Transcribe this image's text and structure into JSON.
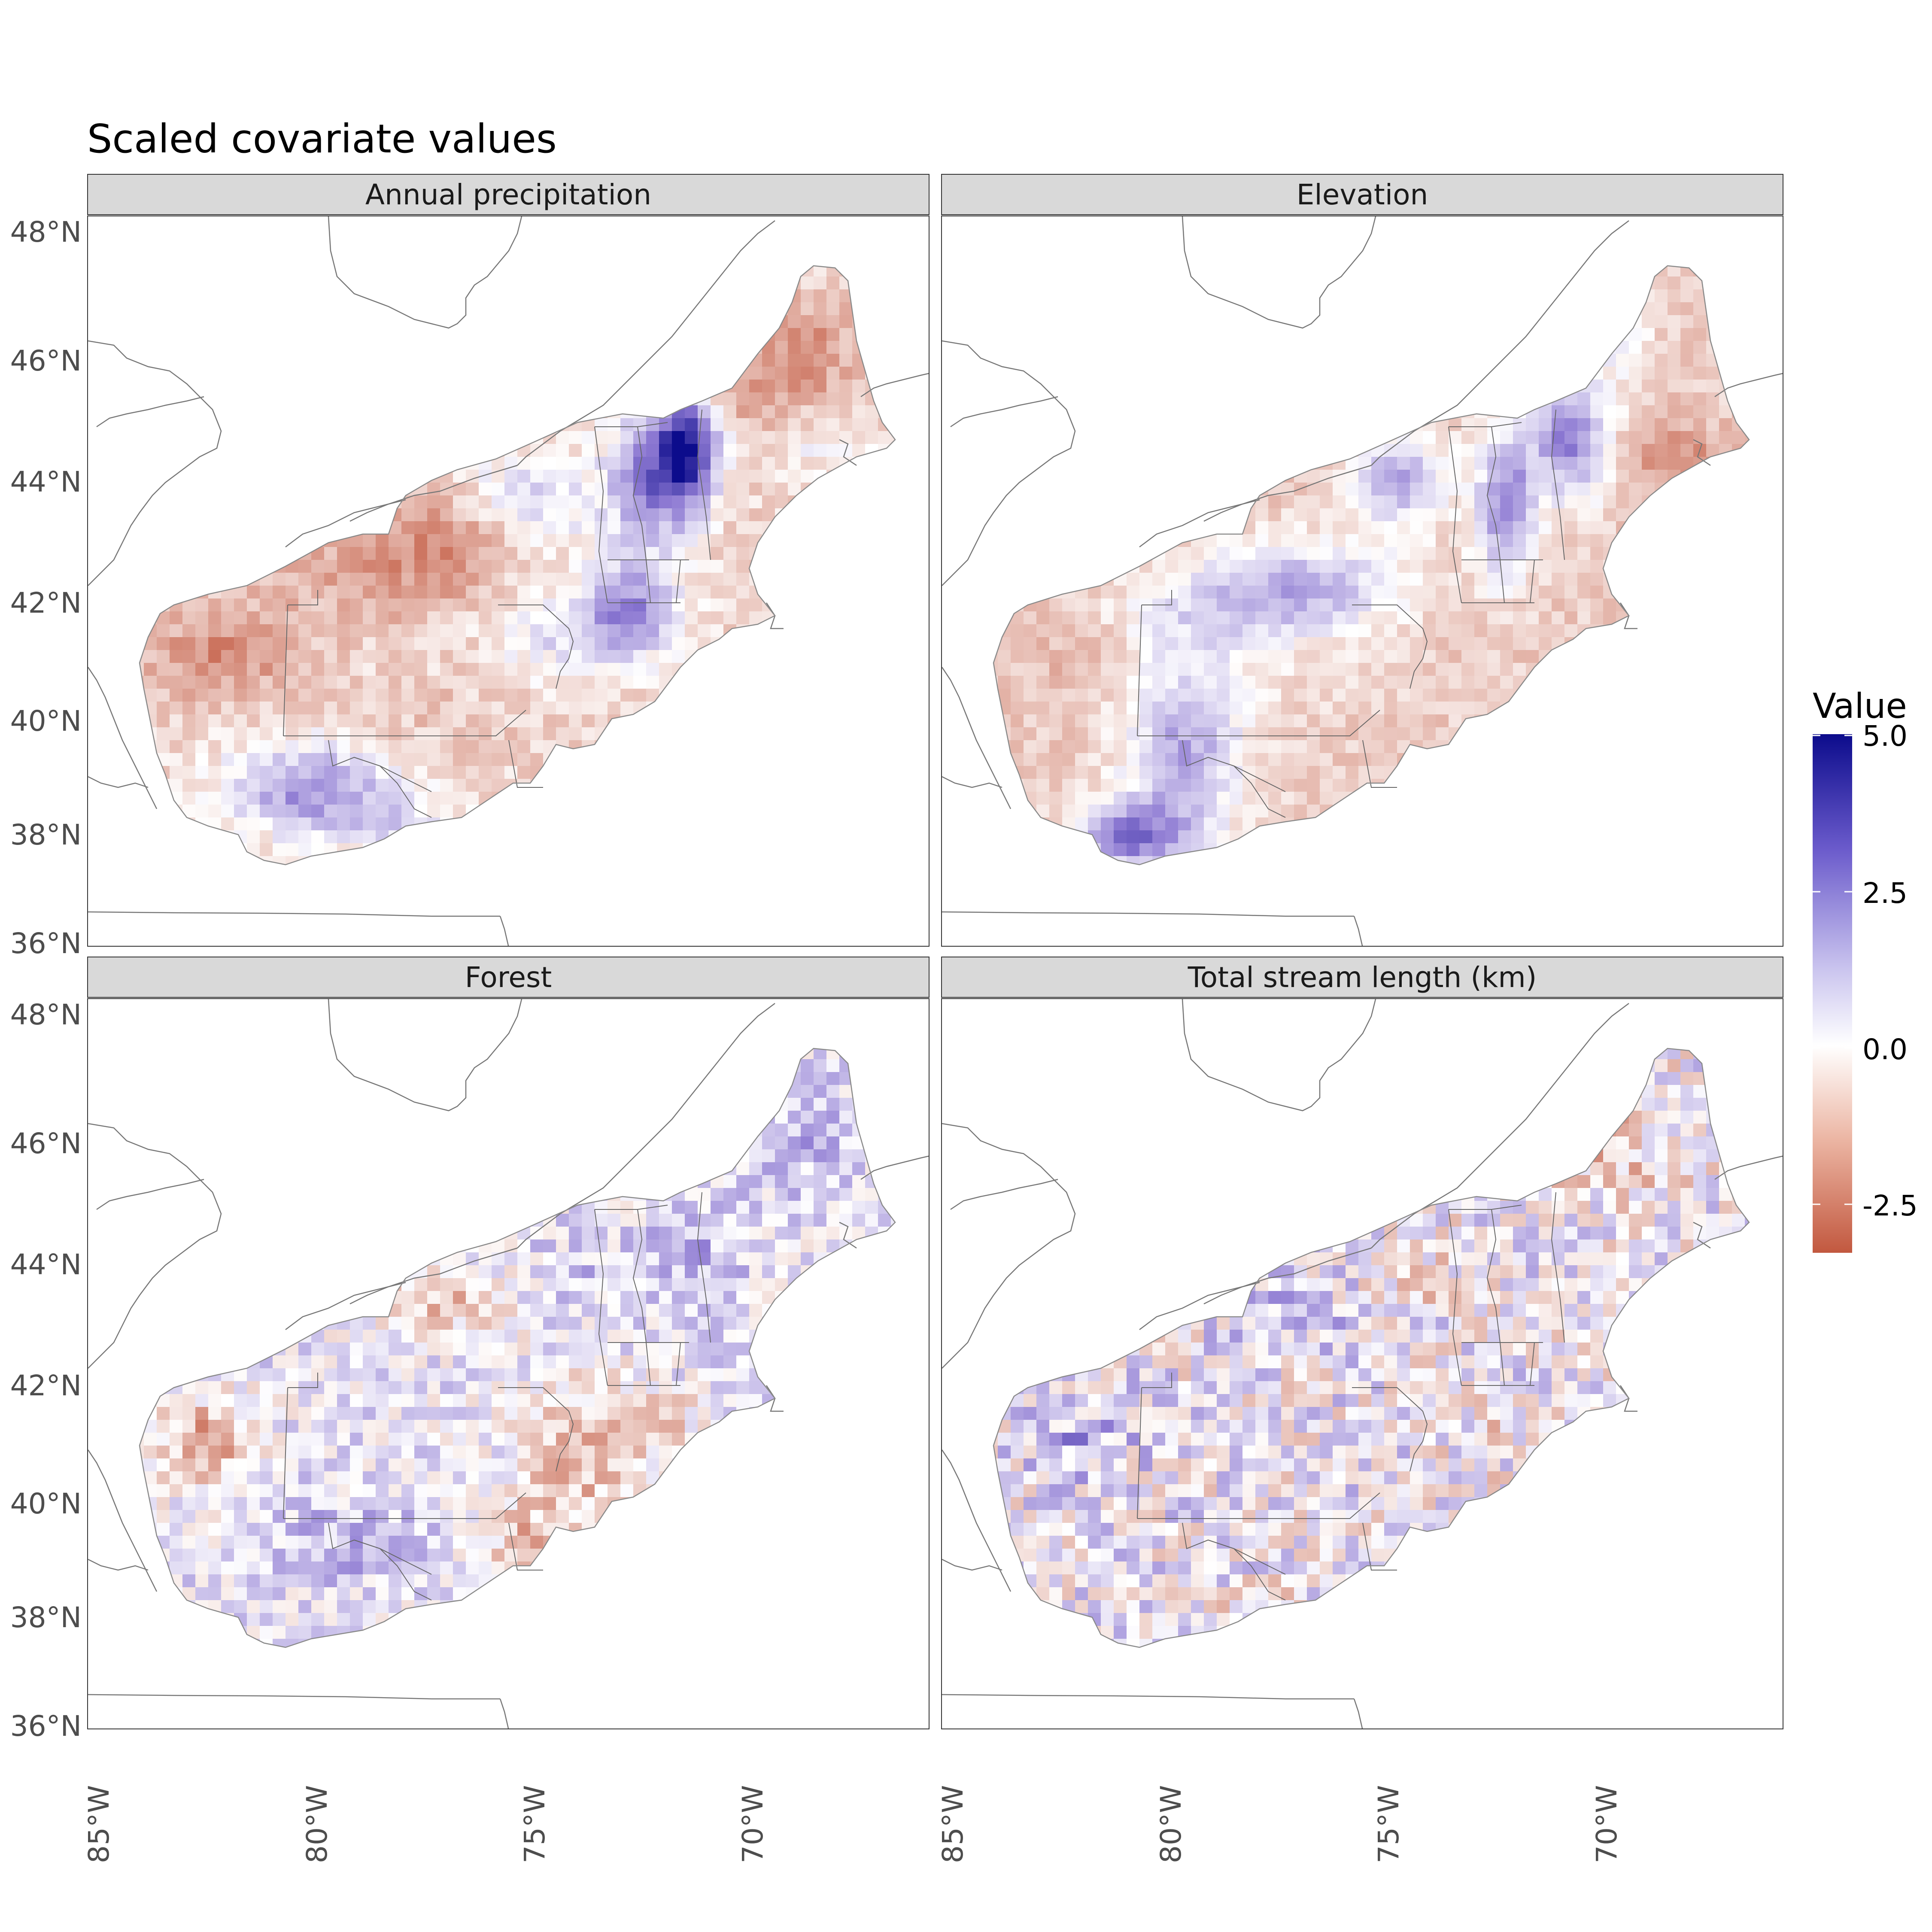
{
  "title": "Scaled covariate values",
  "panels": [
    {
      "name": "Annual precipitation"
    },
    {
      "name": "Elevation"
    },
    {
      "name": "Forest"
    },
    {
      "name": "Total stream length (km)"
    }
  ],
  "axes": {
    "y_ticks": [
      "48°N",
      "46°N",
      "44°N",
      "42°N",
      "40°N",
      "38°N",
      "36°N"
    ],
    "x_ticks": [
      "85°W",
      "80°W",
      "75°W",
      "70°W"
    ],
    "lat_range": [
      35.8,
      48.2
    ],
    "lon_range": [
      -85.2,
      -65.8
    ]
  },
  "legend": {
    "title": "Value",
    "labels": [
      "5.0",
      "2.5",
      "0.0",
      "-2.5"
    ],
    "range": [
      -3.3,
      5.0
    ],
    "colors": {
      "low": "#c2583f",
      "mid": "#ffffff",
      "high": "#0c0c8c"
    }
  }
}
